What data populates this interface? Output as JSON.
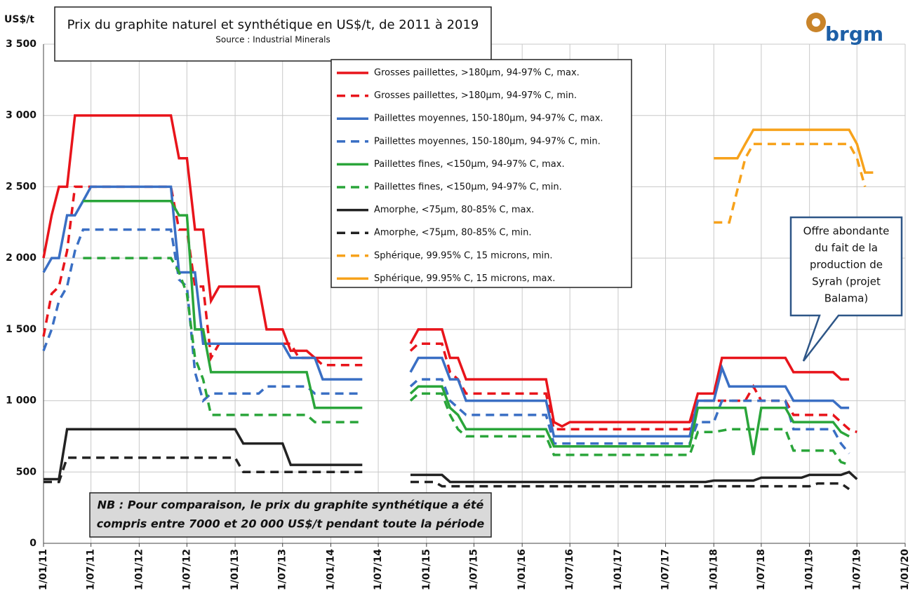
{
  "chart_data": {
    "type": "line",
    "title": "Prix du graphite naturel et synthétique en US$/t, de 2011 à 2019",
    "subtitle": "Source : Industrial Minerals",
    "y_label": "US$/t",
    "logo": "brgm",
    "annotations": [
      {
        "lines": [
          "Offre abondante",
          "du fait de la",
          "production de",
          "Syrah (projet",
          "Balama)"
        ]
      },
      {
        "lines": [
          "NB : Pour comparaison, le prix du graphite synthétique a été",
          "compris entre 7000 et 20 000 US$/t pendant toute la période"
        ]
      }
    ],
    "grid": true,
    "xlim": [
      "2011-01-01",
      "2020-01-01"
    ],
    "xticks": [
      {
        "value": "2011-01-01",
        "label": "1/01/11"
      },
      {
        "value": "2011-07-01",
        "label": "1/07/11"
      },
      {
        "value": "2012-01-01",
        "label": "1/01/12"
      },
      {
        "value": "2012-07-01",
        "label": "1/07/12"
      },
      {
        "value": "2013-01-01",
        "label": "1/01/13"
      },
      {
        "value": "2013-07-01",
        "label": "1/07/13"
      },
      {
        "value": "2014-01-01",
        "label": "1/01/14"
      },
      {
        "value": "2014-07-01",
        "label": "1/07/14"
      },
      {
        "value": "2015-01-01",
        "label": "1/01/15"
      },
      {
        "value": "2015-07-01",
        "label": "1/07/15"
      },
      {
        "value": "2016-01-01",
        "label": "1/01/16"
      },
      {
        "value": "2016-07-01",
        "label": "1/07/16"
      },
      {
        "value": "2017-01-01",
        "label": "1/01/17"
      },
      {
        "value": "2017-07-01",
        "label": "1/07/17"
      },
      {
        "value": "2018-01-01",
        "label": "1/01/18"
      },
      {
        "value": "2018-07-01",
        "label": "1/07/18"
      },
      {
        "value": "2019-01-01",
        "label": "1/01/19"
      },
      {
        "value": "2019-07-01",
        "label": "1/07/19"
      },
      {
        "value": "2020-01-01",
        "label": "1/01/20"
      }
    ],
    "ylim": [
      0,
      3500
    ],
    "yticks": [
      0,
      500,
      {
        "value": 1000,
        "label": "1 000"
      },
      {
        "value": 1500,
        "label": "1 500"
      },
      {
        "value": 2000,
        "label": "2 000"
      },
      {
        "value": 2500,
        "label": "2 500"
      },
      {
        "value": 3000,
        "label": "3 000"
      },
      {
        "value": 3500,
        "label": "3 500"
      }
    ],
    "series": [
      {
        "name": "Grosses paillettes, >180µm, 94-97% C, max.",
        "color": "#e8141b",
        "style": "solid",
        "x": [
          "2011-01-01",
          "2011-02-01",
          "2011-03-01",
          "2011-04-01",
          "2011-05-01",
          "2012-05-01",
          "2012-06-01",
          "2012-07-01",
          "2012-08-01",
          "2012-09-01",
          "2012-10-01",
          "2012-11-01",
          "2013-04-01",
          "2013-05-01",
          "2013-07-01",
          "2013-08-01",
          "2013-10-01",
          "2013-11-01",
          "2014-05-01",
          "2014-07-01",
          "2014-11-01",
          "2014-12-01",
          "2015-03-01",
          "2015-04-01",
          "2015-05-01",
          "2015-06-01",
          "2016-04-01",
          "2016-05-01",
          "2016-06-01",
          "2016-07-01",
          "2017-10-01",
          "2017-11-01",
          "2018-01-01",
          "2018-02-01",
          "2018-10-01",
          "2018-11-01",
          "2019-04-01",
          "2019-05-01",
          "2019-06-01"
        ],
        "values": [
          2000,
          2300,
          2500,
          2500,
          3000,
          3000,
          2700,
          2700,
          2200,
          2200,
          1700,
          1800,
          1800,
          1500,
          1500,
          1350,
          1350,
          1300,
          1300,
          null,
          1400,
          1500,
          1500,
          1300,
          1300,
          1150,
          1150,
          850,
          820,
          850,
          850,
          1050,
          1050,
          1300,
          1300,
          1200,
          1200,
          1150,
          1150
        ]
      },
      {
        "name": "Grosses paillettes, >180µm, 94-97% C, min.",
        "color": "#e8141b",
        "style": "dashed",
        "x": [
          "2011-01-01",
          "2011-02-01",
          "2011-03-01",
          "2011-04-01",
          "2011-05-01",
          "2012-05-01",
          "2012-06-01",
          "2012-07-01",
          "2012-08-01",
          "2012-09-01",
          "2012-10-01",
          "2012-11-01",
          "2013-08-01",
          "2013-09-01",
          "2013-11-01",
          "2013-12-01",
          "2014-05-01",
          "2014-07-01",
          "2014-11-01",
          "2014-12-01",
          "2015-03-01",
          "2015-04-01",
          "2015-05-01",
          "2015-06-01",
          "2016-04-01",
          "2016-05-01",
          "2017-10-01",
          "2017-11-01",
          "2018-05-01",
          "2018-06-01",
          "2018-07-01",
          "2018-10-01",
          "2018-11-01",
          "2019-04-01",
          "2019-05-01",
          "2019-06-01",
          "2019-07-01"
        ],
        "values": [
          1450,
          1750,
          1800,
          2050,
          2500,
          2500,
          2200,
          2200,
          1800,
          1800,
          1300,
          1400,
          1400,
          1300,
          1300,
          1250,
          1250,
          null,
          1350,
          1400,
          1400,
          1200,
          1150,
          1050,
          1050,
          800,
          800,
          1000,
          1000,
          1100,
          1000,
          1000,
          900,
          900,
          850,
          800,
          780
        ]
      },
      {
        "name": "Paillettes moyennes, 150-180µm, 94-97% C, max.",
        "color": "#3a6fc4",
        "style": "solid",
        "x": [
          "2011-01-01",
          "2011-02-01",
          "2011-03-01",
          "2011-04-01",
          "2011-05-01",
          "2011-06-01",
          "2011-07-01",
          "2012-05-01",
          "2012-06-01",
          "2012-08-01",
          "2012-09-01",
          "2013-07-01",
          "2013-08-01",
          "2013-11-01",
          "2013-12-01",
          "2014-05-01",
          "2014-07-01",
          "2014-11-01",
          "2014-12-01",
          "2015-03-01",
          "2015-04-01",
          "2015-05-01",
          "2015-06-01",
          "2016-04-01",
          "2016-05-01",
          "2017-10-01",
          "2017-11-01",
          "2018-01-01",
          "2018-02-01",
          "2018-03-01",
          "2018-10-01",
          "2018-11-01",
          "2019-04-01",
          "2019-05-01",
          "2019-06-01"
        ],
        "values": [
          1900,
          2000,
          2000,
          2300,
          2300,
          2400,
          2500,
          2500,
          1900,
          1900,
          1400,
          1400,
          1300,
          1300,
          1150,
          1150,
          null,
          1200,
          1300,
          1300,
          1150,
          1150,
          1000,
          1000,
          750,
          750,
          1000,
          1000,
          1230,
          1100,
          1100,
          1000,
          1000,
          950,
          950
        ]
      },
      {
        "name": "Paillettes moyennes, 150-180µm, 94-97% C, min.",
        "color": "#3a6fc4",
        "style": "dashed",
        "x": [
          "2011-01-01",
          "2011-02-01",
          "2011-03-01",
          "2011-04-01",
          "2011-05-01",
          "2011-06-01",
          "2012-05-01",
          "2012-06-01",
          "2012-07-01",
          "2012-08-01",
          "2012-09-01",
          "2012-10-01",
          "2013-04-01",
          "2013-05-01",
          "2013-10-01",
          "2013-11-01",
          "2014-05-01",
          "2014-07-01",
          "2014-11-01",
          "2014-12-01",
          "2015-03-01",
          "2015-04-01",
          "2015-05-01",
          "2015-06-01",
          "2016-04-01",
          "2016-05-01",
          "2017-10-01",
          "2017-11-01",
          "2018-01-01",
          "2018-02-01",
          "2018-10-01",
          "2018-11-01",
          "2019-04-01",
          "2019-05-01",
          "2019-06-01"
        ],
        "values": [
          1350,
          1500,
          1700,
          1800,
          2050,
          2200,
          2200,
          1850,
          1800,
          1200,
          1000,
          1050,
          1050,
          1100,
          1100,
          1050,
          1050,
          null,
          1100,
          1150,
          1150,
          1000,
          950,
          900,
          900,
          700,
          700,
          850,
          850,
          1000,
          1000,
          800,
          800,
          700,
          630
        ]
      },
      {
        "name": "Paillettes fines, <150µm, 94-97% C, max.",
        "color": "#2aa53a",
        "style": "solid",
        "x": [
          "2011-06-01",
          "2012-05-01",
          "2012-06-01",
          "2012-07-01",
          "2012-08-01",
          "2012-09-01",
          "2012-10-01",
          "2013-10-01",
          "2013-11-01",
          "2014-05-01",
          "2014-07-01",
          "2014-11-01",
          "2014-12-01",
          "2015-03-01",
          "2015-04-01",
          "2015-05-01",
          "2015-06-01",
          "2016-04-01",
          "2016-05-01",
          "2017-10-01",
          "2017-11-01",
          "2018-05-01",
          "2018-06-01",
          "2018-07-01",
          "2018-10-01",
          "2018-11-01",
          "2019-04-01",
          "2019-05-01",
          "2019-06-01"
        ],
        "values": [
          2400,
          2400,
          2300,
          2300,
          1500,
          1500,
          1200,
          1200,
          950,
          950,
          null,
          1050,
          1100,
          1100,
          950,
          900,
          800,
          800,
          680,
          680,
          950,
          950,
          620,
          950,
          950,
          850,
          850,
          780,
          750
        ]
      },
      {
        "name": "Paillettes fines, <150µm, 94-97% C, min.",
        "color": "#2aa53a",
        "style": "dashed",
        "x": [
          "2011-06-01",
          "2012-05-01",
          "2012-06-01",
          "2012-07-01",
          "2012-08-01",
          "2012-09-01",
          "2012-10-01",
          "2013-10-01",
          "2013-11-01",
          "2014-05-01",
          "2014-07-01",
          "2014-11-01",
          "2014-12-01",
          "2015-03-01",
          "2015-04-01",
          "2015-05-01",
          "2015-06-01",
          "2016-04-01",
          "2016-05-01",
          "2017-10-01",
          "2017-11-01",
          "2018-01-01",
          "2018-03-01",
          "2018-10-01",
          "2018-11-01",
          "2019-04-01",
          "2019-05-01",
          "2019-06-01"
        ],
        "values": [
          2000,
          2000,
          1900,
          1750,
          1300,
          1150,
          900,
          900,
          850,
          850,
          null,
          1000,
          1050,
          1050,
          900,
          800,
          750,
          750,
          620,
          620,
          780,
          780,
          800,
          800,
          650,
          650,
          570,
          550
        ]
      },
      {
        "name": "Amorphe, <75µm, 80-85% C, max.",
        "color": "#222222",
        "style": "solid",
        "x": [
          "2011-01-01",
          "2011-03-01",
          "2011-04-01",
          "2013-01-01",
          "2013-02-01",
          "2013-07-01",
          "2013-08-01",
          "2014-05-01",
          "2014-07-01",
          "2014-11-01",
          "2015-03-01",
          "2015-04-01",
          "2017-12-01",
          "2018-01-01",
          "2018-06-01",
          "2018-07-01",
          "2018-12-01",
          "2019-01-01",
          "2019-05-01",
          "2019-06-01",
          "2019-07-01"
        ],
        "values": [
          450,
          450,
          800,
          800,
          700,
          700,
          550,
          550,
          null,
          480,
          480,
          430,
          430,
          440,
          440,
          460,
          460,
          480,
          480,
          500,
          450
        ]
      },
      {
        "name": "Amorphe, <75µm, 80-85% C, min.",
        "color": "#222222",
        "style": "dashed",
        "x": [
          "2011-01-01",
          "2011-03-01",
          "2011-04-01",
          "2013-01-01",
          "2013-02-01",
          "2014-05-01",
          "2014-07-01",
          "2014-11-01",
          "2015-02-01",
          "2015-03-01",
          "2019-01-01",
          "2019-02-01",
          "2019-05-01",
          "2019-06-01"
        ],
        "values": [
          430,
          430,
          600,
          600,
          500,
          500,
          null,
          430,
          430,
          400,
          400,
          420,
          420,
          380
        ]
      },
      {
        "name": "Sphérique, 99.95% C, 15 microns, min.",
        "color": "#f7a21b",
        "style": "dashed",
        "x": [
          "2018-01-01",
          "2018-03-01",
          "2018-05-01",
          "2018-06-01",
          "2019-06-01",
          "2019-07-01",
          "2019-08-01"
        ],
        "values": [
          2250,
          2250,
          2700,
          2800,
          2800,
          2700,
          2500
        ]
      },
      {
        "name": "Sphérique, 99.95% C, 15 microns, max.",
        "color": "#f7a21b",
        "style": "solid",
        "x": [
          "2018-01-01",
          "2018-04-01",
          "2018-05-01",
          "2018-06-01",
          "2019-06-01",
          "2019-07-01",
          "2019-08-01",
          "2019-09-01"
        ],
        "values": [
          2700,
          2700,
          2800,
          2900,
          2900,
          2800,
          2600,
          2600
        ]
      }
    ]
  }
}
